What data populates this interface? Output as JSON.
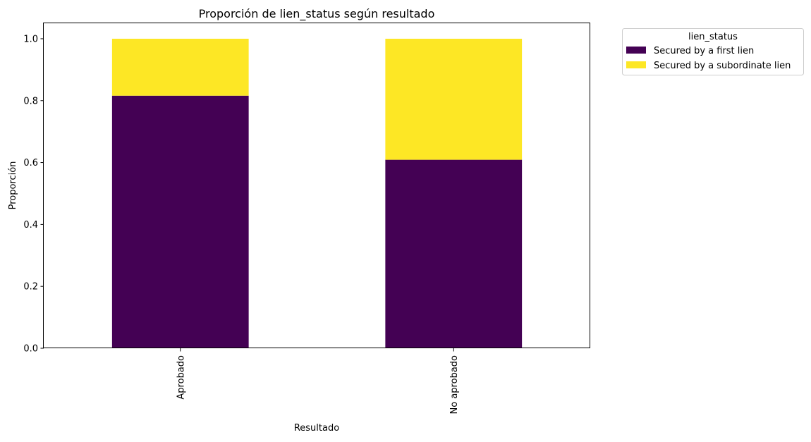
{
  "chart_data": {
    "type": "bar",
    "stacked": true,
    "title": "Proporción de lien_status según resultado",
    "xlabel": "Resultado",
    "ylabel": "Proporción",
    "categories": [
      "Aprobado",
      "No aprobado"
    ],
    "ylim": [
      0,
      1.05
    ],
    "yticks": [
      0.0,
      0.2,
      0.4,
      0.6,
      0.8,
      1.0
    ],
    "ytick_labels": [
      "0.0",
      "0.2",
      "0.4",
      "0.6",
      "0.8",
      "1.0"
    ],
    "grid": false,
    "legend": {
      "title": "lien_status",
      "placement": "outside-top-right"
    },
    "series": [
      {
        "name": "Secured by a first lien",
        "color": "#440154",
        "values": [
          0.816,
          0.609
        ]
      },
      {
        "name": "Secured by a subordinate lien",
        "color": "#fde725",
        "values": [
          0.184,
          0.391
        ]
      }
    ]
  }
}
